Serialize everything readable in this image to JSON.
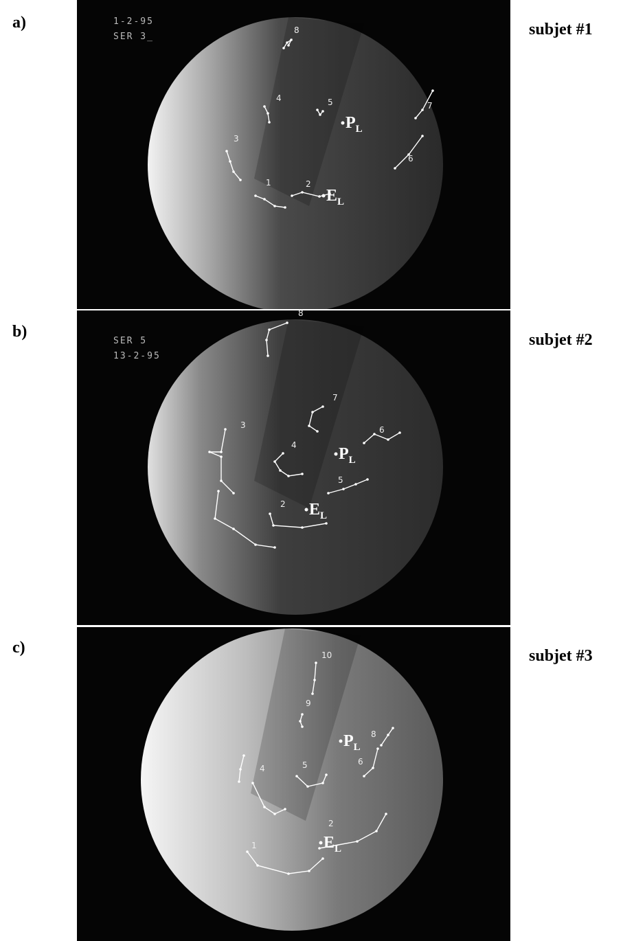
{
  "panels": [
    {
      "label": "a)",
      "subject": "subjet #1",
      "overlay": [
        "1-2-95",
        "SER 3_"
      ],
      "markers": [
        "8",
        "4",
        "5",
        "7",
        "3",
        "6",
        "1",
        "2"
      ],
      "points": [
        {
          "main": "P",
          "sub": "L"
        },
        {
          "main": "E",
          "sub": "L"
        }
      ]
    },
    {
      "label": "b)",
      "subject": "subjet #2",
      "overlay": [
        "SER 5",
        "13-2-95"
      ],
      "markers": [
        "8",
        "7",
        "3",
        "6",
        "4",
        "5",
        "2"
      ],
      "points": [
        {
          "main": "P",
          "sub": "L"
        },
        {
          "main": "E",
          "sub": "L"
        }
      ]
    },
    {
      "label": "c)",
      "subject": "subjet #3",
      "overlay": [],
      "markers": [
        "10",
        "9",
        "8",
        "4",
        "5",
        "6",
        "2",
        "1"
      ],
      "points": [
        {
          "main": "P",
          "sub": "L"
        },
        {
          "main": "E",
          "sub": "L"
        }
      ]
    }
  ]
}
